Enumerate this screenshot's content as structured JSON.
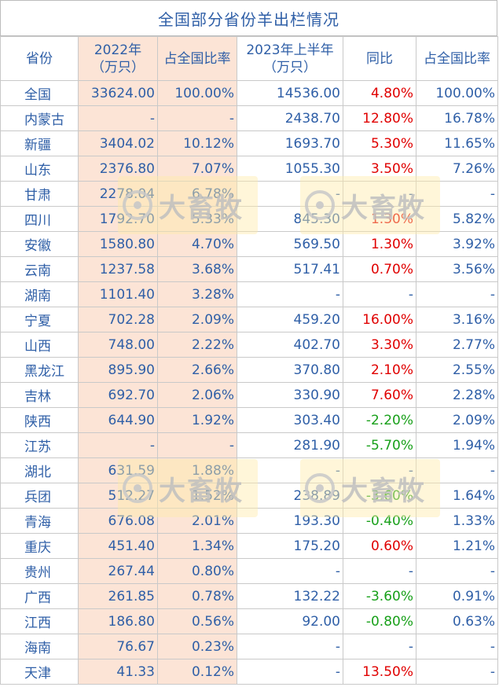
{
  "title": "全国部分省份羊出栏情况",
  "headers": [
    "省份",
    "2022年\n（万只）",
    "占全国比率",
    "2023年上半年\n（万只）",
    "同比",
    "占全国比率"
  ],
  "headers_lines": [
    [
      "省份"
    ],
    [
      "2022年",
      "（万只）"
    ],
    [
      "占全国比率"
    ],
    [
      "2023年上半年",
      "（万只）"
    ],
    [
      "同比"
    ],
    [
      "占全国比率"
    ]
  ],
  "rows": [
    {
      "province": "全国",
      "y2022": "33624.00",
      "share2022": "100.00%",
      "h2023": "14536.00",
      "yoy": "4.80%",
      "yoy_color": "red",
      "share2023": "100.00%"
    },
    {
      "province": "内蒙古",
      "y2022": "-",
      "share2022": "-",
      "h2023": "2438.70",
      "yoy": "12.80%",
      "yoy_color": "red",
      "share2023": "16.78%"
    },
    {
      "province": "新疆",
      "y2022": "3404.02",
      "share2022": "10.12%",
      "h2023": "1693.70",
      "yoy": "5.30%",
      "yoy_color": "red",
      "share2023": "11.65%"
    },
    {
      "province": "山东",
      "y2022": "2376.80",
      "share2022": "7.07%",
      "h2023": "1055.30",
      "yoy": "3.50%",
      "yoy_color": "red",
      "share2023": "7.26%"
    },
    {
      "province": "甘肃",
      "y2022": "2278.04",
      "share2022": "6.78%",
      "h2023": "-",
      "yoy": "-",
      "yoy_color": "blue",
      "share2023": "-"
    },
    {
      "province": "四川",
      "y2022": "1792.70",
      "share2022": "5.33%",
      "h2023": "845.30",
      "yoy": "1.30%",
      "yoy_color": "red",
      "share2023": "5.82%"
    },
    {
      "province": "安徽",
      "y2022": "1580.80",
      "share2022": "4.70%",
      "h2023": "569.50",
      "yoy": "1.30%",
      "yoy_color": "red",
      "share2023": "3.92%"
    },
    {
      "province": "云南",
      "y2022": "1237.58",
      "share2022": "3.68%",
      "h2023": "517.41",
      "yoy": "0.70%",
      "yoy_color": "red",
      "share2023": "3.56%"
    },
    {
      "province": "湖南",
      "y2022": "1101.40",
      "share2022": "3.28%",
      "h2023": "-",
      "yoy": "-",
      "yoy_color": "blue",
      "share2023": "-"
    },
    {
      "province": "宁夏",
      "y2022": "702.28",
      "share2022": "2.09%",
      "h2023": "459.20",
      "yoy": "16.00%",
      "yoy_color": "red",
      "share2023": "3.16%"
    },
    {
      "province": "山西",
      "y2022": "748.00",
      "share2022": "2.22%",
      "h2023": "402.70",
      "yoy": "3.30%",
      "yoy_color": "red",
      "share2023": "2.77%"
    },
    {
      "province": "黑龙江",
      "y2022": "895.90",
      "share2022": "2.66%",
      "h2023": "370.80",
      "yoy": "2.10%",
      "yoy_color": "red",
      "share2023": "2.55%"
    },
    {
      "province": "吉林",
      "y2022": "692.70",
      "share2022": "2.06%",
      "h2023": "330.90",
      "yoy": "7.60%",
      "yoy_color": "red",
      "share2023": "2.28%"
    },
    {
      "province": "陕西",
      "y2022": "644.90",
      "share2022": "1.92%",
      "h2023": "303.40",
      "yoy": "-2.20%",
      "yoy_color": "green",
      "share2023": "2.09%"
    },
    {
      "province": "江苏",
      "y2022": "-",
      "share2022": "-",
      "h2023": "281.90",
      "yoy": "-5.70%",
      "yoy_color": "green",
      "share2023": "1.94%"
    },
    {
      "province": "湖北",
      "y2022": "631.59",
      "share2022": "1.88%",
      "h2023": "-",
      "yoy": "-",
      "yoy_color": "blue",
      "share2023": "-"
    },
    {
      "province": "兵团",
      "y2022": "512.27",
      "share2022": "1.52%",
      "h2023": "238.89",
      "yoy": "-3.60%",
      "yoy_color": "green",
      "share2023": "1.64%"
    },
    {
      "province": "青海",
      "y2022": "676.08",
      "share2022": "2.01%",
      "h2023": "193.30",
      "yoy": "-0.40%",
      "yoy_color": "green",
      "share2023": "1.33%"
    },
    {
      "province": "重庆",
      "y2022": "451.40",
      "share2022": "1.34%",
      "h2023": "175.20",
      "yoy": "0.60%",
      "yoy_color": "red",
      "share2023": "1.21%"
    },
    {
      "province": "贵州",
      "y2022": "267.44",
      "share2022": "0.80%",
      "h2023": "-",
      "yoy": "-",
      "yoy_color": "blue",
      "share2023": "-"
    },
    {
      "province": "广西",
      "y2022": "261.85",
      "share2022": "0.78%",
      "h2023": "132.22",
      "yoy": "-3.60%",
      "yoy_color": "green",
      "share2023": "0.91%"
    },
    {
      "province": "江西",
      "y2022": "186.80",
      "share2022": "0.56%",
      "h2023": "92.00",
      "yoy": "-0.80%",
      "yoy_color": "green",
      "share2023": "0.63%"
    },
    {
      "province": "海南",
      "y2022": "76.67",
      "share2022": "0.23%",
      "h2023": "-",
      "yoy": "-",
      "yoy_color": "blue",
      "share2023": "-"
    },
    {
      "province": "天津",
      "y2022": "41.33",
      "share2022": "0.12%",
      "h2023": "-",
      "yoy": "13.50%",
      "yoy_color": "red",
      "share2023": "-"
    }
  ],
  "watermark": {
    "text": "大畜牧",
    "icon": "circle-logo-icon"
  }
}
